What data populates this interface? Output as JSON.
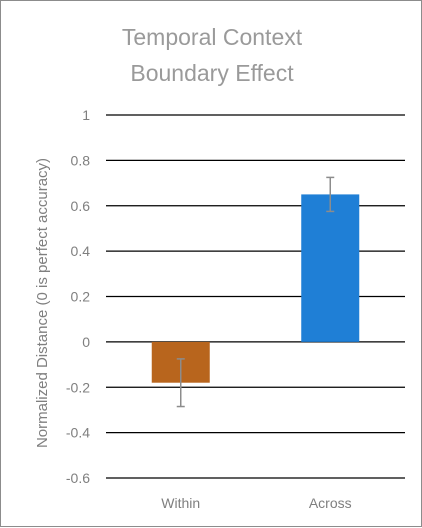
{
  "chart_data": {
    "type": "bar",
    "title_lines": [
      "Temporal Context",
      "Boundary Effect"
    ],
    "xlabel": "",
    "ylabel": "Normalized Distance (0 is perfect accuracy)",
    "categories": [
      "Within",
      "Across"
    ],
    "values": [
      -0.18,
      0.65
    ],
    "error_low": [
      -0.285,
      0.575
    ],
    "error_high": [
      -0.075,
      0.725
    ],
    "bar_colors": [
      "#b8651d",
      "#1f7fd6"
    ],
    "ylim": [
      -0.6,
      1
    ],
    "yticks": [
      1,
      0.8,
      0.6,
      0.4,
      0.2,
      0,
      -0.2,
      -0.4,
      -0.6
    ],
    "ytick_labels": [
      "1",
      "0.8",
      "0.6",
      "0.4",
      "0.2",
      "0",
      "-0.2",
      "-0.4",
      "-0.6"
    ],
    "grid": true,
    "legend": "none",
    "gridline_color": "#000000",
    "error_bar_color": "#8c8c8c"
  }
}
